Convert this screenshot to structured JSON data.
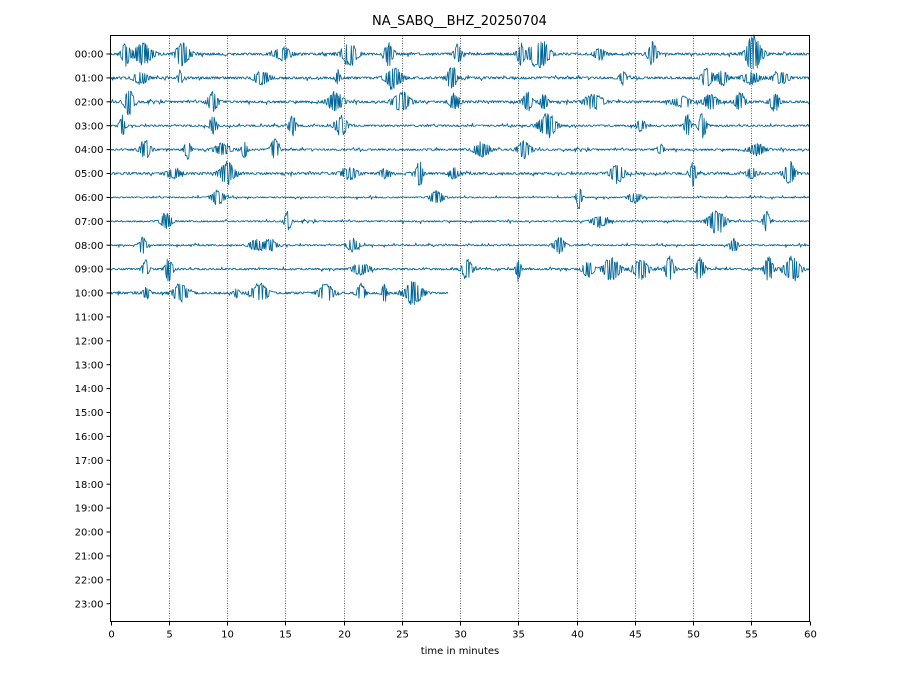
{
  "chart_data": {
    "type": "line",
    "title": "NA_SABQ__BHZ_20250704",
    "xlabel": "time in minutes",
    "ylabel": "",
    "xlim": [
      0,
      60
    ],
    "x_ticks": [
      "0",
      "5",
      "10",
      "15",
      "20",
      "25",
      "30",
      "35",
      "40",
      "45",
      "50",
      "55",
      "60"
    ],
    "y_tick_labels": [
      "00:00",
      "01:00",
      "02:00",
      "03:00",
      "04:00",
      "05:00",
      "06:00",
      "07:00",
      "08:00",
      "09:00",
      "10:00",
      "11:00",
      "12:00",
      "13:00",
      "14:00",
      "15:00",
      "16:00",
      "17:00",
      "18:00",
      "19:00",
      "20:00",
      "21:00",
      "22:00",
      "23:00"
    ],
    "grid": "vertical dotted lines at each 5 minutes",
    "trace_color": "#006699",
    "rows": [
      {
        "hour": "00:00",
        "end_minute": 60,
        "noise": 0.6,
        "events": [
          1.3,
          2.8,
          6.2,
          14.8,
          20.5,
          23.9,
          29.8,
          35.2,
          36.3,
          37.0,
          42.0,
          46.5,
          55.0,
          55.3
        ]
      },
      {
        "hour": "01:00",
        "end_minute": 60,
        "noise": 0.6,
        "events": [
          2.6,
          6.0,
          13.0,
          19.5,
          24.3,
          29.3,
          44.0,
          51.2,
          52.5,
          55.0,
          57.5
        ]
      },
      {
        "hour": "02:00",
        "end_minute": 60,
        "noise": 0.55,
        "events": [
          1.6,
          8.8,
          19.3,
          25.0,
          29.5,
          35.8,
          37.2,
          41.5,
          49.0,
          51.5,
          54.0,
          57.0
        ]
      },
      {
        "hour": "03:00",
        "end_minute": 60,
        "noise": 0.45,
        "events": [
          1.0,
          8.8,
          15.6,
          19.8,
          37.5,
          45.5,
          49.5,
          50.8
        ]
      },
      {
        "hour": "04:00",
        "end_minute": 60,
        "noise": 0.45,
        "events": [
          3.0,
          6.6,
          9.6,
          11.5,
          14.1,
          31.9,
          35.5,
          47.2,
          55.5
        ]
      },
      {
        "hour": "05:00",
        "end_minute": 60,
        "noise": 0.55,
        "events": [
          5.4,
          10.0,
          20.5,
          23.5,
          26.5,
          29.5,
          43.5,
          50.0,
          55.0,
          58.3
        ]
      },
      {
        "hour": "06:00",
        "end_minute": 60,
        "noise": 0.3,
        "events": [
          9.2,
          28.0,
          40.2,
          45.0
        ]
      },
      {
        "hour": "07:00",
        "end_minute": 60,
        "noise": 0.35,
        "events": [
          4.8,
          15.2,
          42.0,
          52.0,
          56.3
        ]
      },
      {
        "hour": "08:00",
        "end_minute": 60,
        "noise": 0.35,
        "events": [
          2.8,
          12.5,
          13.7,
          20.8,
          38.5,
          53.5
        ]
      },
      {
        "hour": "09:00",
        "end_minute": 60,
        "noise": 0.45,
        "events": [
          3.0,
          5.0,
          21.5,
          30.6,
          35.0,
          41.0,
          43.0,
          45.5,
          48.0,
          50.6,
          56.5,
          58.5
        ]
      },
      {
        "hour": "10:00",
        "end_minute": 29,
        "noise": 0.55,
        "events": [
          3.1,
          6.0,
          10.8,
          12.8,
          18.5,
          21.5,
          23.5,
          26.0
        ]
      }
    ]
  }
}
